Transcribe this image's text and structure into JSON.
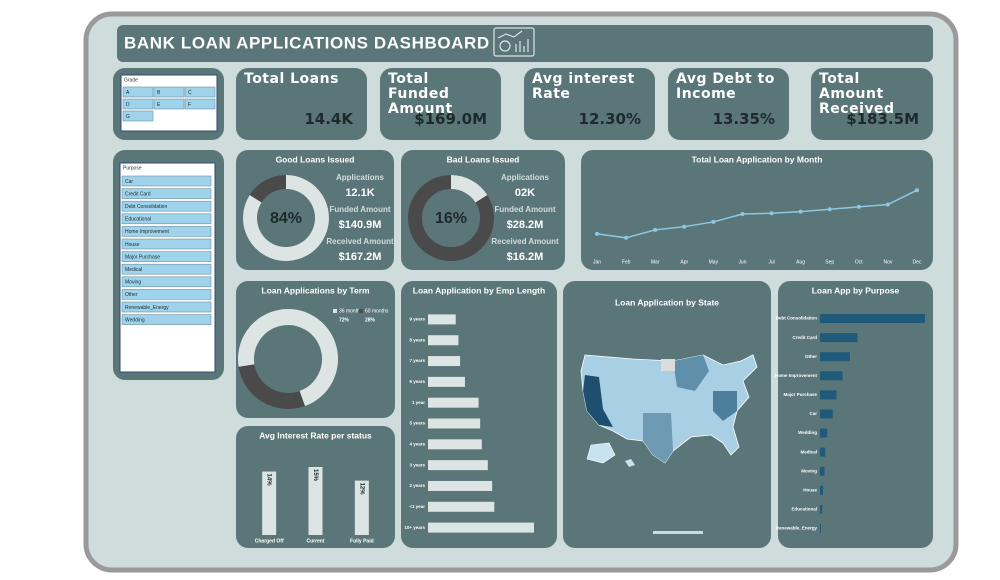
{
  "header": {
    "title": "BANK LOAN APPLICATIONS DASHBOARD"
  },
  "kpis": [
    {
      "label": "Total Loans",
      "value": "14.4K"
    },
    {
      "label": "Total Funded Amount",
      "value": "$169.0M"
    },
    {
      "label": "Avg interest Rate",
      "value": "12.30%"
    },
    {
      "label": "Avg Debt to Income",
      "value": "13.35%"
    },
    {
      "label": "Total Amount Received",
      "value": "$183.5M"
    }
  ],
  "slicers": [
    {
      "title": "Grade",
      "items": [
        "A",
        "B",
        "C",
        "D",
        "E",
        "F",
        "G"
      ]
    },
    {
      "title": "Purpose",
      "items": [
        "Car",
        "Credit Card",
        "Debt Consolidation",
        "Educational",
        "Home Improvement",
        "House",
        "Major Purchase",
        "Medical",
        "Moving",
        "Other",
        "Renewable_Energy",
        "Wedding"
      ]
    }
  ],
  "chart_data": [
    {
      "type": "donut",
      "title": "Good Loans Issued",
      "values": [
        84
      ],
      "value_labels": [
        "84%"
      ],
      "color": "#dde4e4",
      "track_color": "#4a4a4a",
      "stats": [
        {
          "label": "Applications",
          "value": "12.1K"
        },
        {
          "label": "Funded Amount",
          "value": "$140.9M"
        },
        {
          "label": "Received Amount",
          "value": "$167.2M"
        }
      ]
    },
    {
      "type": "donut",
      "title": "Bad Loans Issued",
      "values": [
        16
      ],
      "value_labels": [
        "16%"
      ],
      "color": "#dde4e4",
      "track_color": "#4a4a4a",
      "stats": [
        {
          "label": "Applications",
          "value": "02K"
        },
        {
          "label": "Funded Amount",
          "value": "$28.2M"
        },
        {
          "label": "Received Amount",
          "value": "$16.2M"
        }
      ]
    },
    {
      "type": "line",
      "title": "Total Loan Application by Month",
      "color": "#8fc7e3",
      "categories": [
        "Jan",
        "Feb",
        "Mar",
        "Apr",
        "May",
        "Jun",
        "Jul",
        "Aug",
        "Sep",
        "Oct",
        "Nov",
        "Dec"
      ],
      "values": [
        950,
        900,
        1000,
        1040,
        1100,
        1200,
        1210,
        1230,
        1260,
        1290,
        1320,
        1500
      ]
    },
    {
      "type": "pie",
      "title": "Loan Applications by Term",
      "categories": [
        "36 months",
        "60 months"
      ],
      "values": [
        72,
        28
      ],
      "value_labels": [
        "72%",
        "28%"
      ],
      "colors": [
        "#dde4e4",
        "#4a4a4a"
      ]
    },
    {
      "type": "bar",
      "title": "Avg Interest Rate per status",
      "categories": [
        "Charged Off",
        "Current",
        "Fully Paid"
      ],
      "values": [
        14,
        15,
        12
      ],
      "value_labels": [
        "14%",
        "15%",
        "12%"
      ],
      "color": "#dde4e4"
    },
    {
      "type": "hbar",
      "title": "Loan Application by Emp Length",
      "color": "#dde4e4",
      "categories": [
        "9 years",
        "8 years",
        "7 years",
        "6 years",
        "1 year",
        "5 years",
        "4 years",
        "3 years",
        "2 years",
        "<1 year",
        "10+ years"
      ],
      "values": [
        510,
        560,
        590,
        680,
        930,
        960,
        990,
        1100,
        1180,
        1220,
        1950
      ]
    },
    {
      "type": "map",
      "title": "Loan Application by State"
    },
    {
      "type": "hbar",
      "title": "Loan App by Purpose",
      "color": "#1f5a7a",
      "categories": [
        "Debt Consolidation",
        "Credit Card",
        "Other",
        "Home Improvement",
        "Major Purchase",
        "Car",
        "Wedding",
        "Medical",
        "Moving",
        "House",
        "Educational",
        "Renewable_Energy"
      ],
      "values": [
        7000,
        2500,
        2000,
        1500,
        1100,
        850,
        480,
        350,
        300,
        200,
        150,
        60
      ]
    }
  ]
}
